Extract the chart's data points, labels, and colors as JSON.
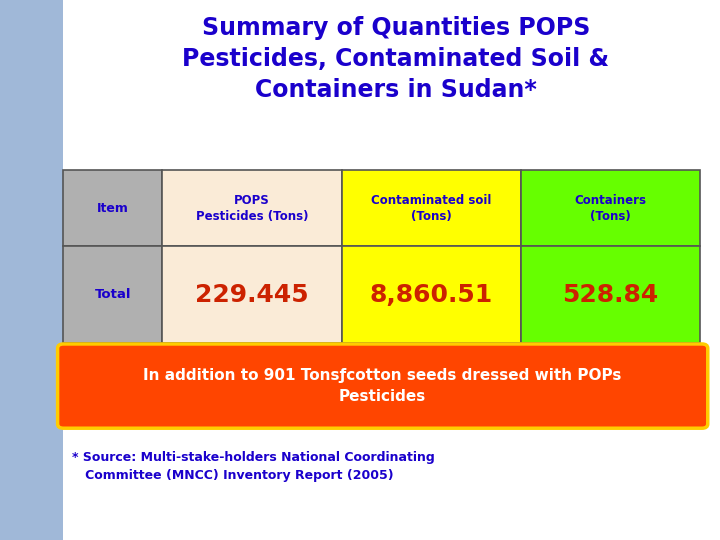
{
  "title_line1": "Summary of Quantities POPS",
  "title_line2": "Pesticides, Contaminated Soil &",
  "title_line3": "Containers in Sudan*",
  "title_color": "#1a00cc",
  "bg_color": "#ffffff",
  "slide_bg": "#a0b8d8",
  "col_headers": [
    "POPS\nPesticides (Tons)",
    "Contaminated soil\n(Tons)",
    "Containers\n(Tons)"
  ],
  "row_label": "Total",
  "values": [
    "229.445",
    "8,860.51",
    "528.84"
  ],
  "header_bg_col0": "#b0b0b0",
  "header_bg_col1": "#faebd7",
  "header_bg_col2": "#ffff00",
  "header_bg_col3": "#66ff00",
  "row_bg_col0": "#b0b0b0",
  "row_bg_col1": "#faebd7",
  "row_bg_col2": "#ffff00",
  "row_bg_col3": "#66ff00",
  "header_text_color": "#1a00cc",
  "value_text_color": "#cc2200",
  "row_label_color": "#1a00cc",
  "note_bg": "#ff4500",
  "note_border": "#ffcc00",
  "note_text": "In addition to 901 Tonsƒcotton seeds dressed with POPs\nPesticides",
  "note_text_color": "#ffffff",
  "source_text": "* Source: Multi-stake-holders National Coordinating\n   Committee (MNCC) Inventory Report (2005)",
  "source_color": "#1a00cc",
  "table_border_color": "#555555",
  "item_header_label": "Item"
}
